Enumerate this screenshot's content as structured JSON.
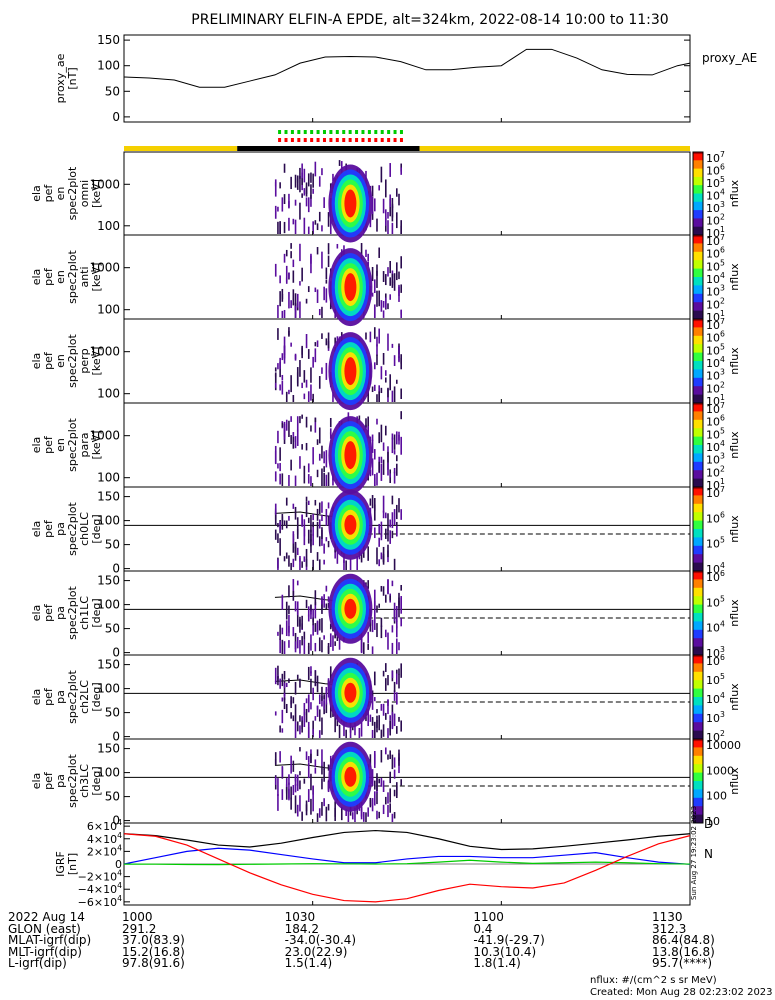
{
  "title": "PRELIMINARY ELFIN-A EPDE, alt=324km, 2022-08-14 10:00 to 11:30",
  "chart_data": [
    {
      "type": "line",
      "id": "proxy_ae",
      "ylabel": [
        "proxy_ae",
        "[nT]"
      ],
      "legend": "proxy_AE",
      "yticks": [
        0,
        50,
        100,
        150
      ],
      "ylim": [
        -10,
        160
      ],
      "x_minutes": [
        0,
        4,
        8,
        12,
        16,
        20,
        24,
        28,
        32,
        36,
        40,
        44,
        48,
        52,
        56,
        60,
        64,
        68,
        72,
        76,
        80,
        84,
        88,
        90
      ],
      "values": [
        78,
        76,
        72,
        58,
        58,
        70,
        82,
        105,
        117,
        118,
        117,
        108,
        92,
        92,
        97,
        100,
        132,
        132,
        115,
        92,
        83,
        82,
        100,
        105
      ]
    },
    {
      "type": "heatmap",
      "id": "ela_pef_en_spec2plot_omni",
      "ylabel": [
        "ela",
        "pef",
        "en",
        "spec2plot",
        "omni",
        "[keV]"
      ],
      "yscale": "log",
      "yticks": [
        100,
        1000
      ],
      "colorbar": {
        "label": "nflux",
        "ticks": [
          "10^7",
          "10^6",
          "10^5",
          "10^4",
          "10^3",
          "10^2",
          "10^1"
        ]
      }
    },
    {
      "type": "heatmap",
      "id": "ela_pef_en_spec2plot_anti",
      "ylabel": [
        "ela",
        "pef",
        "en",
        "spec2plot",
        "anti",
        "[keV]"
      ],
      "yscale": "log",
      "yticks": [
        100,
        1000
      ],
      "colorbar": {
        "label": "nflux",
        "ticks": [
          "10^7",
          "10^6",
          "10^5",
          "10^4",
          "10^3",
          "10^2",
          "10^1"
        ]
      }
    },
    {
      "type": "heatmap",
      "id": "ela_pef_en_spec2plot_perp",
      "ylabel": [
        "ela",
        "pef",
        "en",
        "spec2plot",
        "perp",
        "[keV]"
      ],
      "yscale": "log",
      "yticks": [
        100,
        1000
      ],
      "colorbar": {
        "label": "nflux",
        "ticks": [
          "10^7",
          "10^6",
          "10^5",
          "10^4",
          "10^3",
          "10^2",
          "10^1"
        ]
      }
    },
    {
      "type": "heatmap",
      "id": "ela_pef_en_spec2plot_para",
      "ylabel": [
        "ela",
        "pef",
        "en",
        "spec2plot",
        "para",
        "[keV]"
      ],
      "yscale": "log",
      "yticks": [
        100,
        1000
      ],
      "colorbar": {
        "label": "nflux",
        "ticks": [
          "10^7",
          "10^6",
          "10^5",
          "10^4",
          "10^3",
          "10^2",
          "10^1"
        ]
      }
    },
    {
      "type": "heatmap",
      "id": "ela_pef_pa_spec2plot_ch0LC",
      "ylabel": [
        "ela",
        "pef",
        "pa",
        "spec2plot",
        "ch0LC",
        "[deg]"
      ],
      "yticks": [
        0,
        50,
        100,
        150
      ],
      "colorbar": {
        "label": "nflux",
        "ticks": [
          "10^7",
          "10^6",
          "10^5",
          "10^4"
        ]
      }
    },
    {
      "type": "heatmap",
      "id": "ela_pef_pa_spec2plot_ch1LC",
      "ylabel": [
        "ela",
        "pef",
        "pa",
        "spec2plot",
        "ch1LC",
        "[deg]"
      ],
      "yticks": [
        0,
        50,
        100,
        150
      ],
      "colorbar": {
        "label": "nflux",
        "ticks": [
          "10^6",
          "10^5",
          "10^4",
          "10^3"
        ]
      }
    },
    {
      "type": "heatmap",
      "id": "ela_pef_pa_spec2plot_ch2LC",
      "ylabel": [
        "ela",
        "pef",
        "pa",
        "spec2plot",
        "ch2LC",
        "[deg]"
      ],
      "yticks": [
        0,
        50,
        100,
        150
      ],
      "colorbar": {
        "label": "nflux",
        "ticks": [
          "10^6",
          "10^5",
          "10^4",
          "10^3",
          "10^2"
        ]
      }
    },
    {
      "type": "heatmap",
      "id": "ela_pef_pa_spec2plot_ch3LC",
      "ylabel": [
        "ela",
        "pef",
        "pa",
        "spec2plot",
        "ch3LC",
        "[deg]"
      ],
      "yticks": [
        0,
        50,
        100,
        150
      ],
      "colorbar": {
        "label": "nflux",
        "ticks": [
          "10000",
          "1000",
          "100",
          "10"
        ]
      }
    },
    {
      "type": "line",
      "id": "igrf",
      "ylabel": [
        "IGRF",
        "[nT]"
      ],
      "yticks": [
        "6×10^4",
        "4×10^4",
        "2×10^4",
        "0",
        "−2×10^4",
        "−4×10^4",
        "−6×10^4"
      ],
      "ylim": [
        -65000,
        65000
      ],
      "legend": [
        "D",
        "N"
      ],
      "x_minutes": [
        0,
        5,
        10,
        15,
        20,
        25,
        30,
        35,
        40,
        45,
        50,
        55,
        60,
        65,
        70,
        75,
        80,
        85,
        90
      ],
      "series": [
        {
          "name": "total",
          "color": "#000000",
          "values": [
            48000,
            45000,
            38000,
            30000,
            27000,
            33000,
            42000,
            50000,
            53000,
            50000,
            40000,
            28000,
            23000,
            24000,
            28000,
            33000,
            38000,
            44000,
            48000
          ]
        },
        {
          "name": "blue",
          "color": "#0000ff",
          "values": [
            0,
            10000,
            20000,
            25000,
            22000,
            15000,
            8000,
            2000,
            2000,
            8000,
            12000,
            12000,
            10000,
            10000,
            14000,
            18000,
            10000,
            3000,
            -500
          ]
        },
        {
          "name": "green",
          "color": "#00cc00",
          "values": [
            -200,
            -300,
            -800,
            -1000,
            -500,
            0,
            500,
            300,
            0,
            500,
            3000,
            6000,
            3000,
            1000,
            2000,
            3000,
            2000,
            500,
            -100
          ]
        },
        {
          "name": "red",
          "color": "#ff0000",
          "values": [
            48000,
            44000,
            30000,
            8000,
            -14000,
            -33000,
            -48000,
            -58000,
            -60000,
            -55000,
            -42000,
            -32000,
            -36000,
            -38000,
            -30000,
            -10000,
            12000,
            32000,
            45000
          ]
        }
      ]
    }
  ],
  "xaxis": {
    "tick_labels": [
      "1000",
      "1030",
      "1100",
      "1130"
    ],
    "tick_minutes": [
      0,
      30,
      60,
      90
    ]
  },
  "footer": {
    "rows": [
      {
        "label": "2022 Aug 14",
        "values": [
          "1000",
          "1030",
          "1100",
          "1130"
        ]
      },
      {
        "label": "GLON (east)",
        "values": [
          "291.2",
          "184.2",
          "0.4",
          "312.3"
        ]
      },
      {
        "label": "MLAT-igrf(dip)",
        "values": [
          "37.0(83.9)",
          "-34.0(-30.4)",
          "-41.9(-29.7)",
          "86.4(84.8)"
        ]
      },
      {
        "label": "MLT-igrf(dip)",
        "values": [
          "15.2(16.8)",
          "23.0(22.9)",
          "10.3(10.4)",
          "13.8(16.8)"
        ]
      },
      {
        "label": "L-igrf(dip)",
        "values": [
          "97.8(91.6)",
          "1.5(1.4)",
          "1.8(1.4)",
          "95.7(****)"
        ]
      }
    ],
    "units": "nflux: #/(cm^2 s sr MeV)",
    "created": "Created: Mon Aug 28 02:23:02 2023",
    "side_stamp": "Sun Aug 27 19:23:02 2023"
  }
}
